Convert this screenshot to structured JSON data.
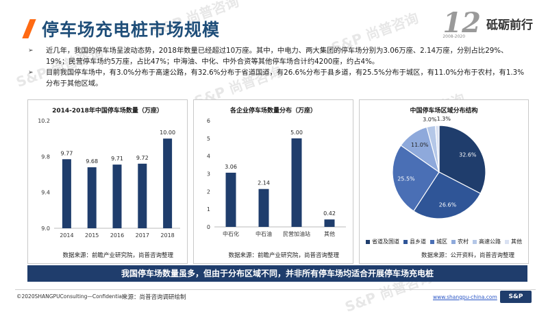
{
  "header": {
    "title": "停车场充电桩市场规模"
  },
  "brand": {
    "number": "12",
    "years": "2008-2020",
    "slogan": "砥砺前行"
  },
  "bullets": [
    "近几年，我国的停车场呈波动态势，2018年数量已经超过10万座。其中，中电力、两大集团的停车场分别为3.06万座、2.14万座，分别占比29%、19%；民营停车场约5万座，占比47%；中海油、中化、中外合资等其他停车场合计约4200座，约占4%。",
    "目前我国停车场中，有3.0%分布于高速公路，有32.6%分布于省道国道，有26.6%分布于县乡道，有25.5%分布于城区，有11.0%分布于农村，有1.3%分布于其他区域。"
  ],
  "bullet_mark": "➢",
  "watermark": {
    "text": "S&P 尚普咨询"
  },
  "chart_data": [
    {
      "type": "bar",
      "title": "2014-2018年中国停车场数量（万座）",
      "categories": [
        "2014",
        "2015",
        "2016",
        "2017",
        "2018"
      ],
      "values": [
        9.77,
        9.68,
        9.71,
        9.72,
        10.0
      ],
      "value_labels": [
        "9.77",
        "9.68",
        "9.71",
        "9.72",
        "10.00"
      ],
      "ylim": [
        9.0,
        10.2
      ],
      "yticks": [
        "9.0",
        "9.4",
        "9.8",
        "10.2"
      ],
      "ytick_values": [
        9.0,
        9.4,
        9.8,
        10.2
      ],
      "source": "数据来源：前瞻产业研究院，尚普咨询整理",
      "color": "#1f3d6c"
    },
    {
      "type": "bar",
      "title": "各企业停车场数量分布（万座）",
      "categories": [
        "中石化",
        "中石油",
        "民营加油站",
        "其他"
      ],
      "values": [
        3.06,
        2.14,
        5.0,
        0.42
      ],
      "value_labels": [
        "3.06",
        "2.14",
        "5.00",
        "0.42"
      ],
      "ylim": [
        0,
        6
      ],
      "yticks": [
        "0",
        "1",
        "2",
        "3",
        "4",
        "5",
        "6"
      ],
      "ytick_values": [
        0,
        1,
        2,
        3,
        4,
        5,
        6
      ],
      "source": "数据来源：前瞻产业研究院，尚普咨询整理",
      "color": "#1f3d6c"
    },
    {
      "type": "pie",
      "title": "中国停车场区域分布结构",
      "labels": [
        "省道及国道",
        "县乡道",
        "城区",
        "农村",
        "高速公路",
        "其他"
      ],
      "values": [
        32.6,
        26.6,
        25.5,
        11.0,
        3.0,
        1.3
      ],
      "value_labels": [
        "32.6%",
        "26.6%",
        "25.5%",
        "11.0%",
        "3.0%",
        "1.3%"
      ],
      "colors": [
        "#1f3d6c",
        "#2f5597",
        "#4a6fb5",
        "#8ea9db",
        "#b4c7e7",
        "#d9e1f2"
      ],
      "source": "数据来源：公开资料，尚普咨询整理"
    }
  ],
  "banner": {
    "text": "我国停车场数量虽多，但由于分布区域不同，并非所有停车场均适合开展停车场充电桩"
  },
  "footer": {
    "copyright": "©2020SHANGPUConsulting—Confidential",
    "source": "来源：尚普咨询调研绘制",
    "url": "www.shangpu-china.com",
    "logo": "S&P"
  }
}
